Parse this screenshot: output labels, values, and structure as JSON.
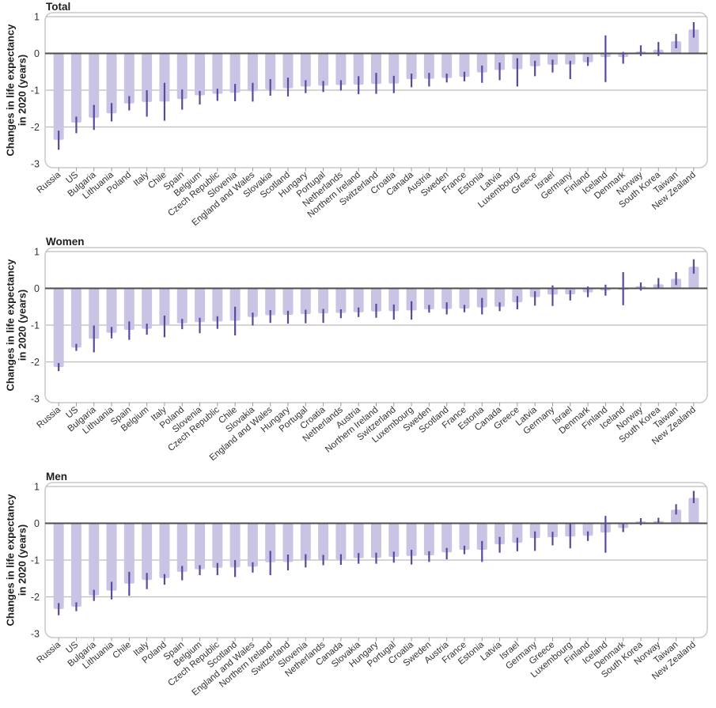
{
  "page": {
    "background": "#ffffff"
  },
  "colors": {
    "bar_fill": "#c9c4e3",
    "whisker": "#584a9c",
    "gridline": "#bcbcbc",
    "zero_line": "#4d4d4d",
    "panel_border": "#c9c9c9",
    "tick": "#999999",
    "text": "#333333",
    "title_text": "#1d1d1d"
  },
  "y_axis": {
    "label_line1": "Changes in life expectancy",
    "label_line2": "in 2020 (years)",
    "ticks": [
      1,
      0,
      -1,
      -2,
      -3
    ]
  },
  "chart_data": [
    {
      "type": "bar",
      "title": "Total",
      "ylabel": "Changes in life expectancy in 2020 (years)",
      "ylim": [
        -3,
        1
      ],
      "yticks": [
        1,
        0,
        -1,
        -2,
        -3
      ],
      "grid": true,
      "error_bars": true,
      "legend": "none",
      "categories": [
        "Russia",
        "US",
        "Bulgaria",
        "Lithuania",
        "Poland",
        "Italy",
        "Chile",
        "Spain",
        "Belgium",
        "Czech Republic",
        "Slovenia",
        "England and Wales",
        "Slovakia",
        "Scotland",
        "Hungary",
        "Portugal",
        "Netherlands",
        "Northern Ireland",
        "Switzerland",
        "Croatia",
        "Canada",
        "Austria",
        "Sweden",
        "France",
        "Estonia",
        "Latvia",
        "Luxembourg",
        "Greece",
        "Israel",
        "Germany",
        "Finland",
        "Iceland",
        "Denmark",
        "Norway",
        "South Korea",
        "Taiwan",
        "New Zealand"
      ],
      "values": [
        -2.35,
        -1.88,
        -1.75,
        -1.63,
        -1.36,
        -1.32,
        -1.31,
        -1.24,
        -1.14,
        -1.1,
        -1.07,
        -1.03,
        -0.98,
        -0.95,
        -0.9,
        -0.88,
        -0.86,
        -0.85,
        -0.83,
        -0.82,
        -0.7,
        -0.69,
        -0.67,
        -0.64,
        -0.52,
        -0.45,
        -0.43,
        -0.35,
        -0.31,
        -0.3,
        -0.24,
        -0.1,
        -0.1,
        0.05,
        0.1,
        0.33,
        0.65
      ],
      "ci_low": [
        -2.62,
        -2.17,
        -2.08,
        -1.85,
        -1.55,
        -1.72,
        -1.83,
        -1.53,
        -1.39,
        -1.29,
        -1.3,
        -1.31,
        -1.15,
        -1.17,
        -1.08,
        -1.05,
        -1.01,
        -1.11,
        -1.1,
        -1.08,
        -0.92,
        -0.9,
        -0.79,
        -0.76,
        -0.8,
        -0.73,
        -0.9,
        -0.62,
        -0.52,
        -0.7,
        -0.34,
        -0.78,
        -0.28,
        -0.07,
        -0.07,
        0.14,
        0.43
      ],
      "ci_high": [
        -2.1,
        -1.72,
        -1.4,
        -1.35,
        -1.16,
        -1.0,
        -0.8,
        -0.98,
        -1.02,
        -0.96,
        -0.83,
        -0.8,
        -0.7,
        -0.66,
        -0.73,
        -0.75,
        -0.73,
        -0.62,
        -0.53,
        -0.61,
        -0.55,
        -0.53,
        -0.55,
        -0.5,
        -0.33,
        -0.25,
        -0.13,
        -0.2,
        -0.17,
        -0.2,
        -0.1,
        0.49,
        0.04,
        0.22,
        0.31,
        0.53,
        0.85
      ]
    },
    {
      "type": "bar",
      "title": "Women",
      "ylabel": "Changes in life expectancy in 2020 (years)",
      "ylim": [
        -3,
        1
      ],
      "yticks": [
        1,
        0,
        -1,
        -2,
        -3
      ],
      "grid": true,
      "error_bars": true,
      "legend": "none",
      "categories": [
        "Russia",
        "US",
        "Bulgaria",
        "Lithuania",
        "Spain",
        "Belgium",
        "Italy",
        "Poland",
        "Slovenia",
        "Czech Republic",
        "Chile",
        "Slovakia",
        "England and Wales",
        "Hungary",
        "Portugal",
        "Croatia",
        "Netherlands",
        "Austria",
        "Northern Ireland",
        "Switzerland",
        "Luxembourg",
        "Sweden",
        "Scotland",
        "France",
        "Estonia",
        "Canada",
        "Greece",
        "Latvia",
        "Germany",
        "Israel",
        "Denmark",
        "Finland",
        "Iceland",
        "Norway",
        "South Korea",
        "Taiwan",
        "New Zealand"
      ],
      "values": [
        -2.14,
        -1.61,
        -1.37,
        -1.21,
        -1.13,
        -1.1,
        -1.0,
        -0.95,
        -0.92,
        -0.9,
        -0.88,
        -0.78,
        -0.73,
        -0.72,
        -0.7,
        -0.68,
        -0.67,
        -0.65,
        -0.63,
        -0.62,
        -0.6,
        -0.57,
        -0.56,
        -0.55,
        -0.52,
        -0.5,
        -0.38,
        -0.24,
        -0.17,
        -0.16,
        -0.11,
        -0.06,
        -0.04,
        0.06,
        0.11,
        0.26,
        0.59
      ],
      "ci_low": [
        -2.25,
        -1.7,
        -1.74,
        -1.36,
        -1.4,
        -1.26,
        -1.33,
        -1.11,
        -1.22,
        -1.1,
        -1.28,
        -1.01,
        -0.94,
        -0.96,
        -0.95,
        -0.94,
        -0.81,
        -0.78,
        -0.8,
        -0.85,
        -0.85,
        -0.66,
        -0.71,
        -0.65,
        -0.71,
        -0.62,
        -0.57,
        -0.47,
        -0.48,
        -0.33,
        -0.24,
        -0.2,
        -0.46,
        -0.06,
        -0.01,
        0.09,
        0.4
      ],
      "ci_high": [
        -2.03,
        -1.51,
        -1.01,
        -1.05,
        -0.9,
        -0.96,
        -0.74,
        -0.83,
        -0.8,
        -0.76,
        -0.5,
        -0.66,
        -0.59,
        -0.61,
        -0.58,
        -0.56,
        -0.57,
        -0.52,
        -0.42,
        -0.44,
        -0.35,
        -0.45,
        -0.38,
        -0.45,
        -0.26,
        -0.38,
        -0.21,
        -0.08,
        0.08,
        -0.05,
        0.05,
        0.1,
        0.44,
        0.16,
        0.28,
        0.44,
        0.79
      ]
    },
    {
      "type": "bar",
      "title": "Men",
      "ylabel": "Changes in life expectancy in 2020 (years)",
      "ylim": [
        -3,
        1
      ],
      "yticks": [
        1,
        0,
        -1,
        -2,
        -3
      ],
      "grid": true,
      "error_bars": true,
      "legend": "none",
      "categories": [
        "Russia",
        "US",
        "Bulgaria",
        "Lithuania",
        "Chile",
        "Italy",
        "Poland",
        "Spain",
        "Belgium",
        "Czech Republic",
        "Scotland",
        "England and Wales",
        "Northern Ireland",
        "Switzerland",
        "Slovenia",
        "Netherlands",
        "Canada",
        "Slovakia",
        "Hungary",
        "Portugal",
        "Croatia",
        "Sweden",
        "Austria",
        "France",
        "Estonia",
        "Latvia",
        "Israel",
        "Germany",
        "Greece",
        "Luxembourg",
        "Finland",
        "Iceland",
        "Denmark",
        "South Korea",
        "Norway",
        "Taiwan",
        "New Zealand"
      ],
      "values": [
        -2.33,
        -2.27,
        -1.96,
        -1.83,
        -1.64,
        -1.54,
        -1.49,
        -1.32,
        -1.25,
        -1.21,
        -1.2,
        -1.18,
        -1.06,
        -1.05,
        -1.0,
        -0.99,
        -0.98,
        -0.95,
        -0.94,
        -0.91,
        -0.89,
        -0.87,
        -0.79,
        -0.72,
        -0.72,
        -0.57,
        -0.53,
        -0.4,
        -0.38,
        -0.36,
        -0.34,
        -0.25,
        -0.13,
        0.05,
        0.06,
        0.37,
        0.69
      ],
      "ci_low": [
        -2.5,
        -2.39,
        -2.11,
        -2.07,
        -1.97,
        -1.79,
        -1.67,
        -1.55,
        -1.41,
        -1.41,
        -1.46,
        -1.34,
        -1.41,
        -1.28,
        -1.2,
        -1.14,
        -1.13,
        -1.1,
        -1.1,
        -1.07,
        -1.12,
        -1.05,
        -0.98,
        -0.84,
        -1.05,
        -0.8,
        -0.76,
        -0.75,
        -0.6,
        -0.68,
        -0.48,
        -0.8,
        -0.24,
        -0.05,
        -0.01,
        0.24,
        0.55
      ],
      "ci_high": [
        -2.17,
        -2.15,
        -1.81,
        -1.59,
        -1.32,
        -1.35,
        -1.38,
        -1.16,
        -1.14,
        -1.08,
        -1.0,
        -1.06,
        -0.75,
        -0.85,
        -0.84,
        -0.86,
        -0.84,
        -0.81,
        -0.8,
        -0.77,
        -0.72,
        -0.76,
        -0.67,
        -0.61,
        -0.48,
        -0.37,
        -0.39,
        -0.22,
        -0.23,
        -0.02,
        -0.22,
        0.2,
        0.0,
        0.14,
        0.15,
        0.52,
        0.88
      ]
    }
  ]
}
